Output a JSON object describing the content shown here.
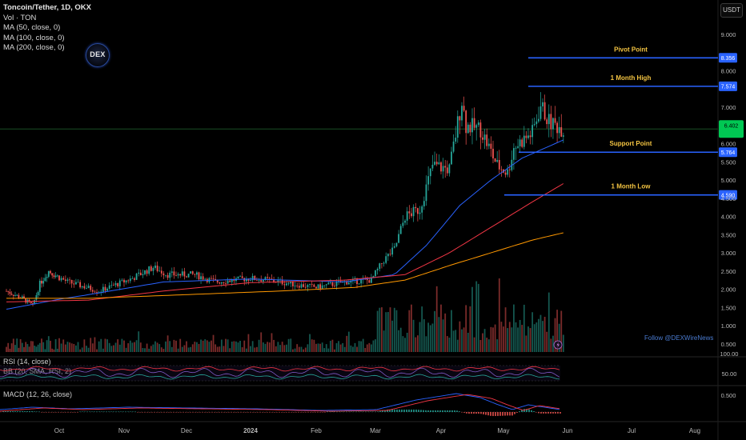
{
  "legend": {
    "symbol": "Toncoin/Tether, 1D, OKX",
    "lines": [
      "Vol · TON",
      "MA (50, close, 0)",
      "MA (100, close, 0)",
      "MA (200, close, 0)"
    ]
  },
  "logo_text": "DEX",
  "currency_button": "USDT",
  "follow_text": "Follow @DEXWireNews",
  "colors": {
    "background": "#000000",
    "up": "#26a69a",
    "down": "#ef5350",
    "ma50": "#2962ff",
    "ma100": "#f23645",
    "ma200": "#ff9800",
    "level_line": "#2962ff",
    "level_text": "#f5c542",
    "current_price": "#00e676",
    "rsi": "#7e57c2",
    "bb": "#26a69a"
  },
  "chart_data": {
    "type": "candlestick",
    "x_ticks": [
      "Oct",
      "Nov",
      "Dec",
      "2024",
      "Feb",
      "Mar",
      "Apr",
      "May",
      "Jun",
      "Jul",
      "Aug"
    ],
    "price_axis": {
      "ticks": [
        "9.000",
        "8.000",
        "7.000",
        "6.000",
        "5.500",
        "5.000",
        "4.500",
        "4.000",
        "3.500",
        "3.000",
        "2.500",
        "2.000",
        "1.500",
        "1.000",
        "0.500"
      ],
      "range": [
        0.3,
        9.5
      ]
    },
    "levels": [
      {
        "name": "Pivot Point",
        "value": 8.356,
        "label": "8.356"
      },
      {
        "name": "1 Month High",
        "value": 7.574,
        "label": "7.574"
      },
      {
        "name": "Support Point",
        "value": 5.764,
        "label": "5.764"
      },
      {
        "name": "1 Month Low",
        "value": 4.59,
        "label": "4.590"
      }
    ],
    "current_price": {
      "value": 6.402,
      "label": "6.402"
    },
    "price_keypoints": [
      [
        "2023-09-01",
        1.95
      ],
      [
        "2023-09-10",
        1.75
      ],
      [
        "2023-09-16",
        1.55
      ],
      [
        "2023-09-20",
        2.15
      ],
      [
        "2023-09-25",
        2.5
      ],
      [
        "2023-10-05",
        2.2
      ],
      [
        "2023-10-20",
        1.95
      ],
      [
        "2023-11-05",
        2.3
      ],
      [
        "2023-11-15",
        2.6
      ],
      [
        "2023-11-22",
        2.4
      ],
      [
        "2023-12-05",
        2.4
      ],
      [
        "2023-12-15",
        2.2
      ],
      [
        "2024-01-01",
        2.3
      ],
      [
        "2024-01-10",
        2.25
      ],
      [
        "2024-01-20",
        2.15
      ],
      [
        "2024-02-01",
        2.05
      ],
      [
        "2024-02-15",
        2.2
      ],
      [
        "2024-02-28",
        2.25
      ],
      [
        "2024-03-05",
        2.8
      ],
      [
        "2024-03-10",
        3.1
      ],
      [
        "2024-03-15",
        4.0
      ],
      [
        "2024-03-22",
        4.2
      ],
      [
        "2024-03-28",
        5.4
      ],
      [
        "2024-04-05",
        5.3
      ],
      [
        "2024-04-11",
        7.2
      ],
      [
        "2024-04-13",
        6.5
      ],
      [
        "2024-04-20",
        6.4
      ],
      [
        "2024-04-28",
        5.4
      ],
      [
        "2024-05-03",
        5.2
      ],
      [
        "2024-05-06",
        5.9
      ],
      [
        "2024-05-15",
        6.3
      ],
      [
        "2024-05-19",
        7.05
      ],
      [
        "2024-05-23",
        6.6
      ],
      [
        "2024-05-30",
        6.4
      ]
    ],
    "moving_averages": [
      {
        "name": "MA 50",
        "color": "#2962ff",
        "points": [
          [
            "2023-09-01",
            1.45
          ],
          [
            "2023-10-15",
            1.85
          ],
          [
            "2023-11-20",
            2.2
          ],
          [
            "2024-01-01",
            2.28
          ],
          [
            "2024-02-15",
            2.2
          ],
          [
            "2024-03-10",
            2.4
          ],
          [
            "2024-03-25",
            3.2
          ],
          [
            "2024-04-10",
            4.3
          ],
          [
            "2024-04-25",
            5.0
          ],
          [
            "2024-05-10",
            5.6
          ],
          [
            "2024-05-30",
            6.1
          ]
        ]
      },
      {
        "name": "MA 100",
        "color": "#f23645",
        "points": [
          [
            "2023-09-01",
            1.65
          ],
          [
            "2023-10-15",
            1.7
          ],
          [
            "2023-11-20",
            1.95
          ],
          [
            "2024-01-01",
            2.18
          ],
          [
            "2024-02-15",
            2.25
          ],
          [
            "2024-03-15",
            2.4
          ],
          [
            "2024-04-05",
            3.0
          ],
          [
            "2024-04-25",
            3.7
          ],
          [
            "2024-05-15",
            4.4
          ],
          [
            "2024-05-30",
            4.9
          ]
        ]
      },
      {
        "name": "MA 200",
        "color": "#ff9800",
        "points": [
          [
            "2023-09-01",
            1.75
          ],
          [
            "2023-10-15",
            1.75
          ],
          [
            "2023-12-01",
            1.85
          ],
          [
            "2024-01-15",
            1.95
          ],
          [
            "2024-02-20",
            2.05
          ],
          [
            "2024-03-15",
            2.25
          ],
          [
            "2024-04-05",
            2.65
          ],
          [
            "2024-04-25",
            3.0
          ],
          [
            "2024-05-15",
            3.35
          ],
          [
            "2024-05-30",
            3.55
          ]
        ]
      }
    ],
    "rsi": {
      "label": "RSI (14, close)",
      "bb_label": "BB (20, SMA, RSI, 2)",
      "ticks": [
        "100.00",
        "50.00"
      ]
    },
    "macd": {
      "label": "MACD (12, 26, close)",
      "ticks": [
        "0.500"
      ]
    }
  }
}
